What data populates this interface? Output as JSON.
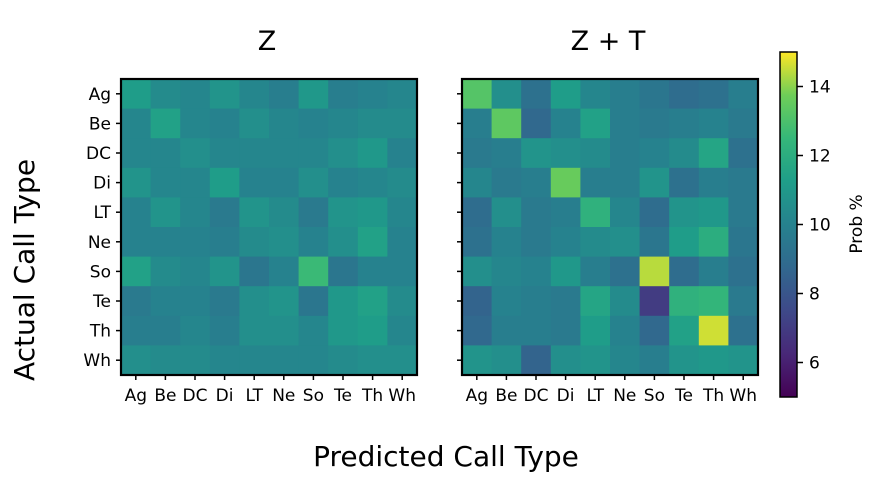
{
  "chart_data": {
    "type": "heatmap",
    "categories": [
      "Ag",
      "Be",
      "DC",
      "Di",
      "LT",
      "Ne",
      "So",
      "Te",
      "Th",
      "Wh"
    ],
    "xlabel": "Predicted Call Type",
    "ylabel": "Actual Call Type",
    "colorbar": {
      "label": "Prob %",
      "min": 5,
      "max": 15,
      "ticks": [
        6,
        8,
        10,
        12,
        14
      ],
      "colormap": "viridis"
    },
    "panels": [
      {
        "title": "Z",
        "values": [
          [
            11.2,
            10.4,
            10.2,
            10.8,
            10.2,
            9.8,
            11.0,
            9.8,
            10.0,
            10.2
          ],
          [
            10.2,
            11.4,
            10.2,
            10.0,
            10.6,
            10.2,
            10.0,
            10.2,
            10.4,
            10.4
          ],
          [
            10.2,
            10.2,
            10.6,
            10.2,
            10.2,
            10.2,
            10.2,
            10.6,
            11.0,
            10.0
          ],
          [
            10.8,
            10.2,
            10.2,
            11.2,
            10.0,
            10.0,
            10.6,
            10.0,
            10.2,
            10.4
          ],
          [
            10.0,
            10.8,
            10.2,
            9.6,
            10.8,
            10.4,
            9.6,
            10.8,
            11.0,
            10.2
          ],
          [
            10.0,
            10.0,
            10.0,
            9.8,
            10.4,
            10.6,
            10.0,
            10.6,
            11.4,
            10.0
          ],
          [
            11.4,
            10.4,
            10.2,
            10.8,
            9.4,
            10.0,
            12.6,
            9.4,
            10.0,
            10.0
          ],
          [
            9.6,
            10.0,
            10.0,
            9.6,
            10.6,
            10.8,
            9.4,
            11.0,
            11.4,
            10.4
          ],
          [
            9.8,
            9.8,
            10.2,
            9.8,
            10.6,
            10.6,
            10.2,
            11.0,
            11.2,
            10.2
          ],
          [
            10.6,
            10.4,
            10.4,
            10.2,
            10.2,
            10.2,
            10.2,
            10.4,
            10.6,
            10.6
          ]
        ]
      },
      {
        "title": "Z + T",
        "values": [
          [
            13.2,
            10.6,
            9.2,
            11.2,
            10.2,
            9.8,
            9.4,
            9.0,
            9.2,
            9.8
          ],
          [
            9.8,
            13.4,
            8.8,
            10.0,
            11.4,
            9.8,
            9.6,
            9.8,
            10.0,
            9.6
          ],
          [
            9.6,
            9.8,
            10.8,
            10.6,
            10.4,
            9.8,
            10.0,
            10.4,
            11.6,
            9.2
          ],
          [
            10.2,
            9.6,
            9.8,
            13.6,
            9.8,
            9.8,
            10.8,
            9.2,
            9.8,
            9.6
          ],
          [
            9.0,
            10.6,
            9.6,
            9.8,
            12.2,
            10.2,
            9.0,
            10.8,
            11.0,
            9.6
          ],
          [
            9.2,
            10.0,
            9.6,
            10.0,
            10.4,
            10.6,
            9.4,
            11.2,
            12.0,
            9.4
          ],
          [
            10.6,
            10.2,
            10.0,
            11.0,
            9.8,
            9.2,
            14.4,
            9.0,
            9.8,
            9.2
          ],
          [
            8.6,
            10.0,
            9.8,
            9.6,
            11.6,
            10.4,
            7.0,
            12.2,
            12.4,
            9.6
          ],
          [
            8.8,
            9.8,
            9.8,
            9.6,
            11.2,
            10.0,
            8.8,
            11.4,
            14.6,
            9.2
          ],
          [
            10.8,
            10.6,
            8.6,
            10.6,
            10.8,
            10.2,
            9.8,
            10.8,
            11.0,
            10.8
          ]
        ]
      }
    ]
  }
}
